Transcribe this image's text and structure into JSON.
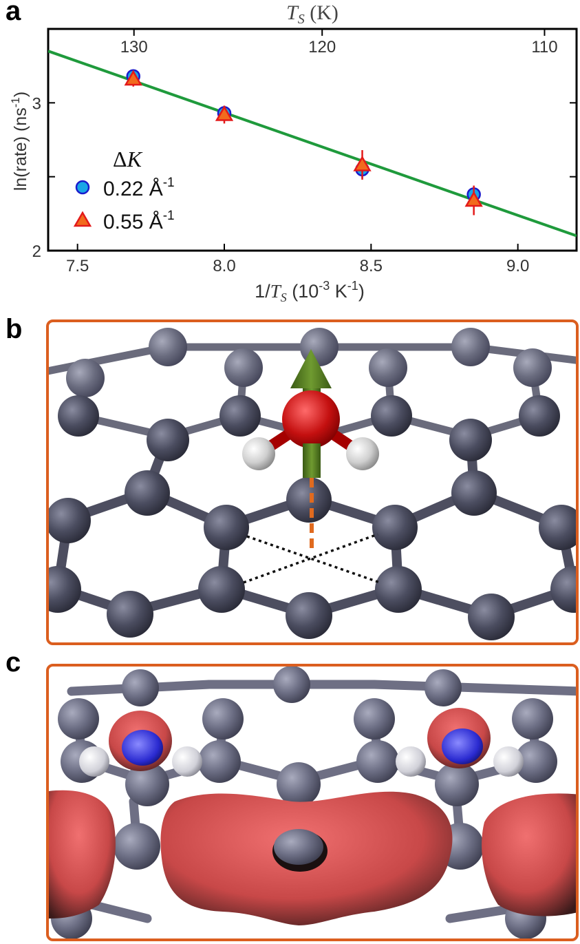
{
  "panels": {
    "a": {
      "letter": "a"
    },
    "b": {
      "letter": "b"
    },
    "c": {
      "letter": "c"
    }
  },
  "chart_data": {
    "type": "scatter",
    "xlabel": "1/T_S (10^-3 K^-1)",
    "ylabel": "ln(rate) (ns^-1)",
    "top_axis_label": "T_S (K)",
    "xlim": [
      7.4,
      9.2
    ],
    "ylim": [
      2.0,
      3.5
    ],
    "x_ticks": [
      7.5,
      8.0,
      8.5,
      9.0
    ],
    "x_tick_labels": [
      "7.5",
      "8.0",
      "8.5",
      "9.0"
    ],
    "y_ticks": [
      2,
      2.5,
      3
    ],
    "y_tick_labels": [
      "2",
      "",
      "3"
    ],
    "top_ticks": [
      130,
      120,
      110
    ],
    "top_tick_labels": [
      "130",
      "120",
      "110"
    ],
    "legend": {
      "title": "ΔK",
      "placement": "center-left"
    },
    "series": [
      {
        "name": "0.22 Å-1",
        "marker": "circle",
        "color": "#1aa6e6",
        "edge": "#1a1acc",
        "x": [
          7.69,
          8.0,
          8.47,
          8.85
        ],
        "y": [
          3.18,
          2.93,
          2.55,
          2.38
        ],
        "err": [
          0.04,
          0.05,
          0.06,
          0.05
        ]
      },
      {
        "name": "0.55 Å-1",
        "marker": "triangle",
        "color": "#f26b1d",
        "edge": "#e31a1a",
        "x": [
          7.69,
          8.0,
          8.47,
          8.85
        ],
        "y": [
          3.16,
          2.92,
          2.58,
          2.34
        ],
        "err": [
          0.05,
          0.06,
          0.1,
          0.1
        ]
      }
    ],
    "fit_line": {
      "color": "#1f9a3c",
      "x": [
        7.4,
        9.2
      ],
      "y": [
        3.35,
        2.1
      ]
    }
  },
  "legend_labels": {
    "title_symbol": "Δ",
    "title_var": "K",
    "s1_prefix": "0.22 Å",
    "s1_sup": "-1",
    "s2_prefix": "0.55 Å",
    "s2_sup": "-1"
  },
  "axis_text": {
    "y_main": "ln(rate) (ns",
    "y_sup": "-1",
    "y_close": ")",
    "x_prefix": "1/",
    "x_var": "T",
    "x_sub": "S",
    "x_units": " (10",
    "x_sup1": "-3",
    "x_mid": " K",
    "x_sup2": "-1",
    "x_close": ")",
    "top_var": "T",
    "top_sub": "S",
    "top_units": " (K)"
  },
  "colors": {
    "frame": "#db5e1f",
    "carbon": "#4a4b5e",
    "oxygen": "#cc1111",
    "hydrogen": "#d9d9d9",
    "dipole_arrow": "#4f7a1f",
    "isosurface": "#e06060"
  }
}
